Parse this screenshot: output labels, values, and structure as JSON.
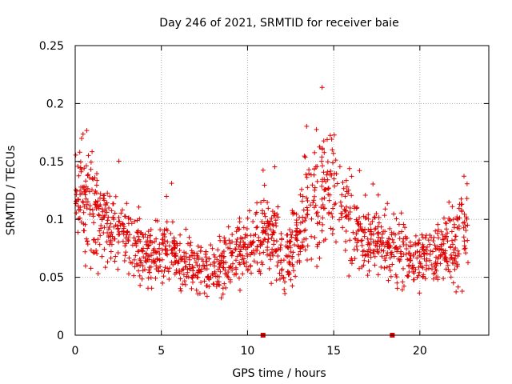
{
  "chart_data": {
    "type": "scatter",
    "title": "Day 246 of 2021, SRMTID for receiver baie",
    "xlabel": "GPS time / hours",
    "ylabel": "SRMTID / TECUs",
    "xlim": [
      0,
      24
    ],
    "ylim": [
      0,
      0.25
    ],
    "x_ticks": [
      "0",
      "5",
      "10",
      "15",
      "20"
    ],
    "y_ticks": [
      "0",
      "0.05",
      "0.1",
      "0.15",
      "0.2",
      "0.25"
    ],
    "grid": true,
    "marker": "+",
    "series_color": "#e00000",
    "gap_markers_x": [
      10.9,
      18.4
    ],
    "envelope": {
      "hours": [
        0,
        0.5,
        1,
        1.5,
        2,
        2.5,
        3,
        3.5,
        4,
        4.5,
        5,
        5.5,
        6,
        6.5,
        7,
        7.5,
        8,
        8.5,
        9,
        9.5,
        10,
        10.5,
        11,
        11.5,
        12,
        12.5,
        13,
        13.5,
        14,
        14.5,
        15,
        15.5,
        16,
        16.5,
        17,
        17.5,
        18,
        18.5,
        19,
        19.5,
        20,
        20.5,
        21,
        21.5,
        22,
        22.5,
        22.8
      ],
      "center": [
        0.11,
        0.12,
        0.115,
        0.105,
        0.095,
        0.09,
        0.085,
        0.08,
        0.07,
        0.065,
        0.07,
        0.07,
        0.065,
        0.06,
        0.058,
        0.055,
        0.055,
        0.06,
        0.065,
        0.07,
        0.075,
        0.08,
        0.085,
        0.08,
        0.07,
        0.07,
        0.09,
        0.11,
        0.12,
        0.125,
        0.13,
        0.12,
        0.1,
        0.09,
        0.085,
        0.08,
        0.08,
        0.075,
        0.07,
        0.065,
        0.065,
        0.065,
        0.07,
        0.075,
        0.08,
        0.085,
        0.09
      ],
      "spread": [
        0.045,
        0.055,
        0.05,
        0.045,
        0.04,
        0.035,
        0.03,
        0.03,
        0.028,
        0.025,
        0.028,
        0.028,
        0.025,
        0.025,
        0.025,
        0.025,
        0.025,
        0.025,
        0.025,
        0.028,
        0.03,
        0.03,
        0.03,
        0.03,
        0.028,
        0.03,
        0.04,
        0.05,
        0.055,
        0.055,
        0.055,
        0.05,
        0.04,
        0.035,
        0.03,
        0.03,
        0.03,
        0.03,
        0.028,
        0.025,
        0.025,
        0.025,
        0.028,
        0.03,
        0.035,
        0.045,
        0.05
      ]
    },
    "points_count": 1500
  }
}
